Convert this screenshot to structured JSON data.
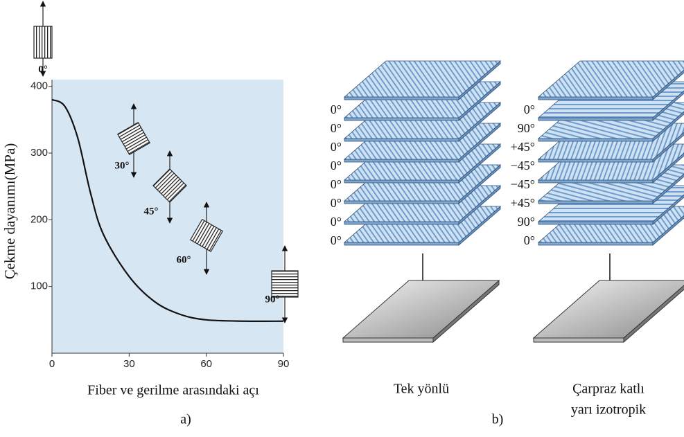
{
  "chart_data": {
    "type": "line",
    "y_label": "Çekme dayanımı(MPa)",
    "x_label": "Fiber ve gerilme arasındaki açı",
    "x": [
      0,
      5,
      10,
      15,
      20,
      30,
      40,
      50,
      60,
      75,
      90
    ],
    "values": [
      380,
      370,
      323,
      240,
      178,
      115,
      77,
      58,
      50,
      48,
      48
    ],
    "color": "#111111",
    "xlim": [
      0,
      90
    ],
    "ylim": [
      0,
      410
    ],
    "xticks": [
      0,
      30,
      60,
      90
    ],
    "yticks": [
      100,
      200,
      300,
      400
    ],
    "annotations": [
      "0°",
      "30°",
      "45°",
      "60°",
      "90°"
    ],
    "panel_label": "a)"
  },
  "diagram": {
    "stacks": [
      {
        "layers": [
          "0°",
          "0°",
          "0°",
          "0°",
          "0°",
          "0°",
          "0°",
          "0°"
        ],
        "caption": [
          "Tek yönlü"
        ]
      },
      {
        "layers": [
          "0°",
          "90°",
          "+45°",
          "−45°",
          "−45°",
          "+45°",
          "90°",
          "0°"
        ],
        "caption": [
          "Çarpraz katlı",
          "yarı izotropik"
        ]
      }
    ],
    "panel_label": "b)"
  }
}
